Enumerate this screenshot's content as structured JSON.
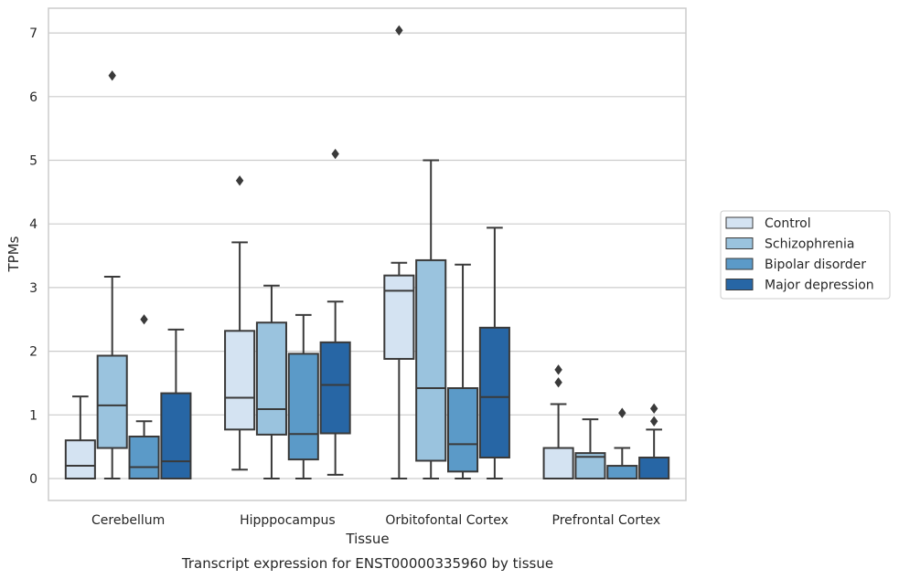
{
  "chart_data": {
    "type": "boxplot",
    "caption": "Transcript expression for ENST00000335960 by tissue",
    "xlabel": "Tissue",
    "ylabel": "TPMs",
    "ylim": [
      -0.33,
      7.4
    ],
    "yticks": [
      0,
      1,
      2,
      3,
      4,
      5,
      6,
      7
    ],
    "grid": "horizontal",
    "legend_position": "right",
    "categories": [
      "Cerebellum",
      "Hipppocampus",
      "Orbitofontal Cortex",
      "Prefrontal Cortex"
    ],
    "series": [
      {
        "name": "Control",
        "color": "#d4e3f2",
        "boxes": [
          {
            "whislo": 0,
            "q1": 0,
            "med": 0.2,
            "q3": 0.6,
            "whishi": 1.29,
            "fliers": []
          },
          {
            "whislo": 0.14,
            "q1": 0.77,
            "med": 1.27,
            "q3": 2.32,
            "whishi": 3.71,
            "fliers": [
              4.68
            ]
          },
          {
            "whislo": 0,
            "q1": 1.88,
            "med": 2.95,
            "q3": 3.19,
            "whishi": 3.39,
            "fliers": [
              7.04
            ]
          },
          {
            "whislo": 0,
            "q1": 0,
            "med": 0,
            "q3": 0.48,
            "whishi": 1.17,
            "fliers": [
              1.51,
              1.71
            ]
          }
        ]
      },
      {
        "name": "Schizophrenia",
        "color": "#9ac3de",
        "boxes": [
          {
            "whislo": 0,
            "q1": 0.48,
            "med": 1.15,
            "q3": 1.93,
            "whishi": 3.17,
            "fliers": [
              6.33
            ]
          },
          {
            "whislo": 0,
            "q1": 0.69,
            "med": 1.09,
            "q3": 2.45,
            "whishi": 3.03,
            "fliers": []
          },
          {
            "whislo": 0,
            "q1": 0.28,
            "med": 1.42,
            "q3": 3.43,
            "whishi": 5.0,
            "fliers": []
          },
          {
            "whislo": 0,
            "q1": 0,
            "med": 0.34,
            "q3": 0.4,
            "whishi": 0.93,
            "fliers": []
          }
        ]
      },
      {
        "name": "Bipolar disorder",
        "color": "#5b9ac8",
        "boxes": [
          {
            "whislo": 0,
            "q1": 0,
            "med": 0.18,
            "q3": 0.66,
            "whishi": 0.9,
            "fliers": [
              2.5
            ]
          },
          {
            "whislo": 0,
            "q1": 0.3,
            "med": 0.7,
            "q3": 1.96,
            "whishi": 2.57,
            "fliers": []
          },
          {
            "whislo": 0,
            "q1": 0.11,
            "med": 0.54,
            "q3": 1.42,
            "whishi": 3.36,
            "fliers": []
          },
          {
            "whislo": 0,
            "q1": 0,
            "med": 0,
            "q3": 0.2,
            "whishi": 0.48,
            "fliers": [
              1.03
            ]
          }
        ]
      },
      {
        "name": "Major depression",
        "color": "#2766a5",
        "boxes": [
          {
            "whislo": 0,
            "q1": 0,
            "med": 0.27,
            "q3": 1.34,
            "whishi": 2.34,
            "fliers": []
          },
          {
            "whislo": 0.06,
            "q1": 0.71,
            "med": 1.47,
            "q3": 2.14,
            "whishi": 2.78,
            "fliers": [
              5.1
            ]
          },
          {
            "whislo": 0,
            "q1": 0.33,
            "med": 1.28,
            "q3": 2.37,
            "whishi": 3.94,
            "fliers": []
          },
          {
            "whislo": 0,
            "q1": 0,
            "med": 0,
            "q3": 0.33,
            "whishi": 0.77,
            "fliers": [
              0.9,
              1.1
            ]
          }
        ]
      }
    ]
  }
}
